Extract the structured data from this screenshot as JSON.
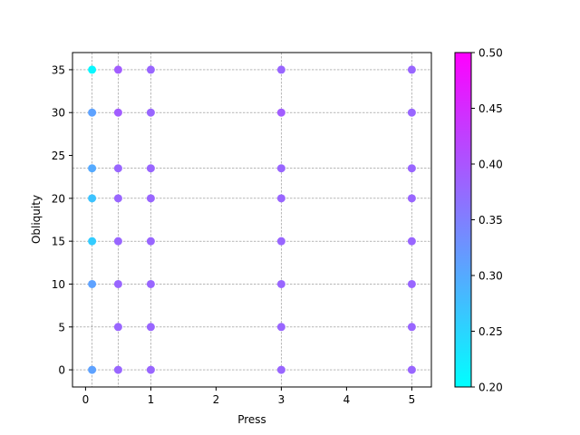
{
  "chart_data": {
    "type": "scatter",
    "xlabel": "Press",
    "ylabel": "Obliquity",
    "xlim": [
      -0.2,
      5.3
    ],
    "ylim": [
      -2,
      37
    ],
    "xticks": [
      0,
      1,
      2,
      3,
      4,
      5
    ],
    "yticks": [
      0,
      5,
      10,
      15,
      20,
      25,
      30,
      35
    ],
    "grid_x": [
      0.1,
      0.5,
      1,
      3,
      5
    ],
    "grid_y": [
      0,
      5,
      10,
      15,
      20,
      23.5,
      30,
      35
    ],
    "colormap": "cool",
    "colorbar": {
      "vmin": 0.2,
      "vmax": 0.5,
      "ticks": [
        "0.20",
        "0.25",
        "0.30",
        "0.35",
        "0.40",
        "0.45",
        "0.50"
      ]
    },
    "points": [
      {
        "x": 0.1,
        "y": 35,
        "c": 0.21
      },
      {
        "x": 0.1,
        "y": 30,
        "c": 0.31
      },
      {
        "x": 0.1,
        "y": 23.5,
        "c": 0.3
      },
      {
        "x": 0.1,
        "y": 20,
        "c": 0.27
      },
      {
        "x": 0.1,
        "y": 15,
        "c": 0.26
      },
      {
        "x": 0.1,
        "y": 10,
        "c": 0.31
      },
      {
        "x": 0.1,
        "y": 0,
        "c": 0.31
      },
      {
        "x": 0.5,
        "y": 35,
        "c": 0.39
      },
      {
        "x": 0.5,
        "y": 30,
        "c": 0.39
      },
      {
        "x": 0.5,
        "y": 23.5,
        "c": 0.38
      },
      {
        "x": 0.5,
        "y": 20,
        "c": 0.38
      },
      {
        "x": 0.5,
        "y": 15,
        "c": 0.38
      },
      {
        "x": 0.5,
        "y": 10,
        "c": 0.38
      },
      {
        "x": 0.5,
        "y": 5,
        "c": 0.38
      },
      {
        "x": 0.5,
        "y": 0,
        "c": 0.38
      },
      {
        "x": 1,
        "y": 35,
        "c": 0.38
      },
      {
        "x": 1,
        "y": 30,
        "c": 0.38
      },
      {
        "x": 1,
        "y": 23.5,
        "c": 0.38
      },
      {
        "x": 1,
        "y": 20,
        "c": 0.38
      },
      {
        "x": 1,
        "y": 15,
        "c": 0.38
      },
      {
        "x": 1,
        "y": 10,
        "c": 0.38
      },
      {
        "x": 1,
        "y": 5,
        "c": 0.38
      },
      {
        "x": 1,
        "y": 0,
        "c": 0.38
      },
      {
        "x": 3,
        "y": 35,
        "c": 0.38
      },
      {
        "x": 3,
        "y": 30,
        "c": 0.39
      },
      {
        "x": 3,
        "y": 23.5,
        "c": 0.38
      },
      {
        "x": 3,
        "y": 20,
        "c": 0.38
      },
      {
        "x": 3,
        "y": 15,
        "c": 0.38
      },
      {
        "x": 3,
        "y": 10,
        "c": 0.38
      },
      {
        "x": 3,
        "y": 5,
        "c": 0.38
      },
      {
        "x": 3,
        "y": 0,
        "c": 0.38
      },
      {
        "x": 5,
        "y": 35,
        "c": 0.38
      },
      {
        "x": 5,
        "y": 30,
        "c": 0.38
      },
      {
        "x": 5,
        "y": 23.5,
        "c": 0.38
      },
      {
        "x": 5,
        "y": 20,
        "c": 0.38
      },
      {
        "x": 5,
        "y": 15,
        "c": 0.38
      },
      {
        "x": 5,
        "y": 10,
        "c": 0.38
      },
      {
        "x": 5,
        "y": 5,
        "c": 0.38
      },
      {
        "x": 5,
        "y": 0,
        "c": 0.38
      }
    ]
  }
}
